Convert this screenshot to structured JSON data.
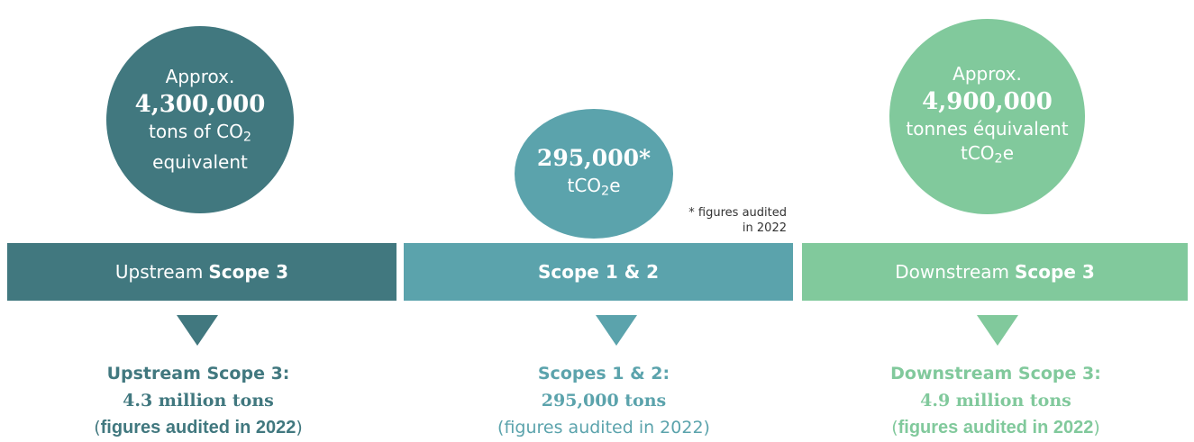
{
  "circles": [
    {
      "approx": "Approx.",
      "value": "4,300,000",
      "unit_prefix": "tons of CO",
      "unit_sub": "2",
      "unit_line2": "equivalent"
    },
    {
      "value": "295,000*",
      "unit_prefix": "tCO",
      "unit_sub": "2",
      "unit_suffix": "e"
    },
    {
      "approx": "Approx.",
      "value": "4,900,000",
      "unit_line1": "tonnes équivalent",
      "unit_prefix": "tCO",
      "unit_sub": "2",
      "unit_suffix": "e"
    }
  ],
  "footnote": {
    "line1": "* figures audited",
    "line2": "in 2022"
  },
  "bands": [
    {
      "prefix": "Upstream",
      "bold": "Scope 3"
    },
    {
      "prefix": "",
      "bold": "Scope 1 & 2"
    },
    {
      "prefix": "Downstream",
      "bold": "Scope 3"
    }
  ],
  "captions": [
    {
      "title": "Upstream Scope 3:",
      "value": "4.3 million tons",
      "open": "(",
      "note": "figures audited in 2022",
      "close": ")"
    },
    {
      "title": "Scopes 1 & 2:",
      "value": "295,000 tons",
      "note": "(figures audited in 2022)"
    },
    {
      "title": "Downstream Scope 3:",
      "value": "4.9 million tons",
      "open": "(",
      "note": "figures audited in 2022",
      "close": ")"
    }
  ],
  "colors": {
    "upstream": "#41787f",
    "scope12": "#5ba3ac",
    "downstream": "#81c99c"
  }
}
